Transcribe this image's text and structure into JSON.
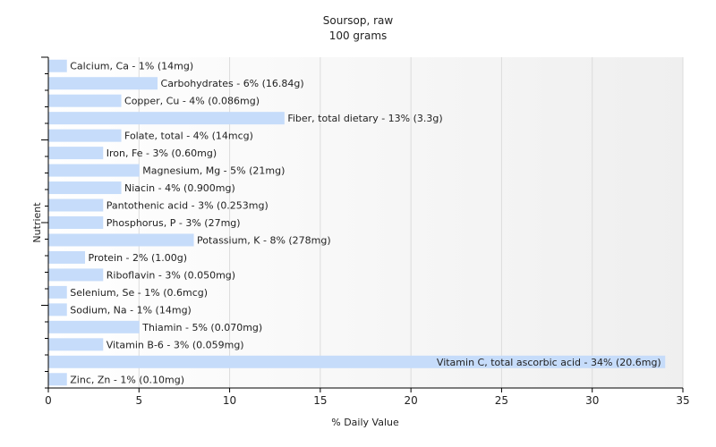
{
  "chart_data": {
    "type": "bar",
    "orientation": "horizontal",
    "title": "Soursop, raw",
    "subtitle": "100 grams",
    "xlabel": "% Daily Value",
    "ylabel": "Nutrient",
    "xlim": [
      0,
      35
    ],
    "xticks": [
      "0",
      "5",
      "10",
      "15",
      "20",
      "25",
      "30",
      "35"
    ],
    "grid": true,
    "bar_color": "#c6dcfa",
    "categories": [
      "Calcium, Ca",
      "Carbohydrates",
      "Copper, Cu",
      "Fiber, total dietary",
      "Folate, total",
      "Iron, Fe",
      "Magnesium, Mg",
      "Niacin",
      "Pantothenic acid",
      "Phosphorus, P",
      "Potassium, K",
      "Protein",
      "Riboflavin",
      "Selenium, Se",
      "Sodium, Na",
      "Thiamin",
      "Vitamin B-6",
      "Vitamin C, total ascorbic acid",
      "Zinc, Zn"
    ],
    "values": [
      1,
      6,
      4,
      13,
      4,
      3,
      5,
      4,
      3,
      3,
      8,
      2,
      3,
      1,
      1,
      5,
      3,
      34,
      1
    ],
    "labels": [
      "Calcium, Ca - 1% (14mg)",
      "Carbohydrates - 6% (16.84g)",
      "Copper, Cu - 4% (0.086mg)",
      "Fiber, total dietary - 13% (3.3g)",
      "Folate, total - 4% (14mcg)",
      "Iron, Fe - 3% (0.60mg)",
      "Magnesium, Mg - 5% (21mg)",
      "Niacin - 4% (0.900mg)",
      "Pantothenic acid - 3% (0.253mg)",
      "Phosphorus, P - 3% (27mg)",
      "Potassium, K - 8% (278mg)",
      "Protein - 2% (1.00g)",
      "Riboflavin - 3% (0.050mg)",
      "Selenium, Se - 1% (0.6mcg)",
      "Sodium, Na - 1% (14mg)",
      "Thiamin - 5% (0.070mg)",
      "Vitamin B-6 - 3% (0.059mg)",
      "Vitamin C, total ascorbic acid - 34% (20.6mg)",
      "Zinc, Zn - 1% (0.10mg)"
    ]
  }
}
